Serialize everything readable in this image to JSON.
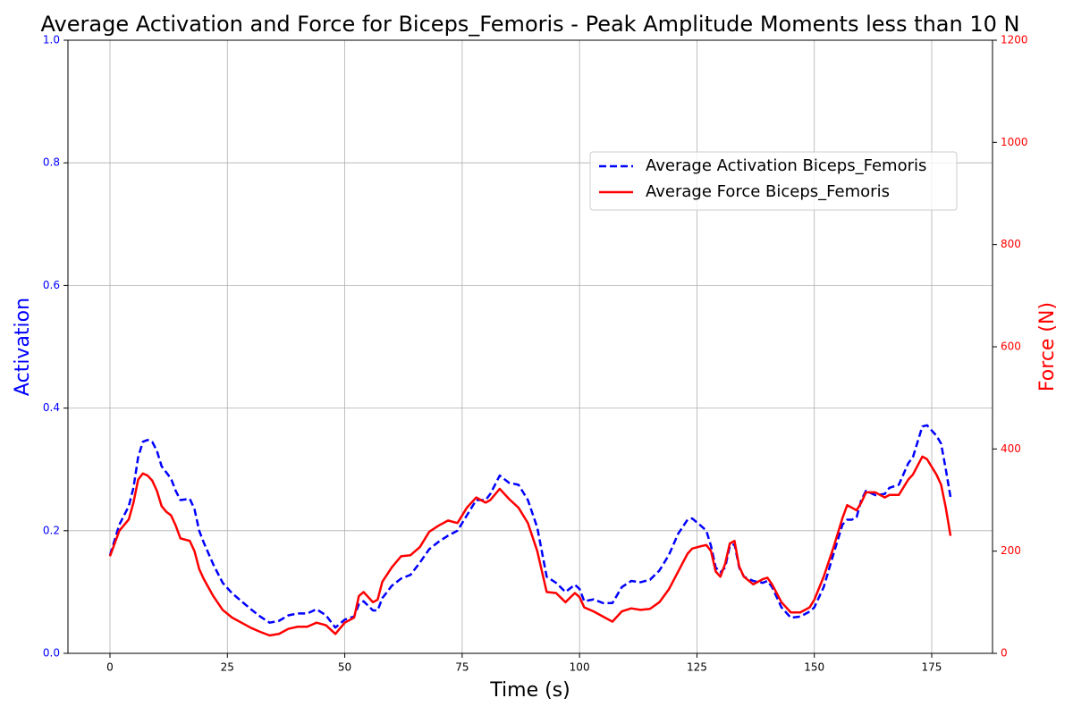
{
  "chart_data": {
    "type": "line",
    "title": "Average Activation and Force for Biceps_Femoris - Peak Amplitude Moments less than 10 N",
    "xlabel": "Time (s)",
    "ylabel": "Activation",
    "y2label": "Force (N)",
    "ylabel_color": "blue",
    "y2label_color": "red",
    "x": [
      0,
      2,
      4,
      5,
      6,
      7,
      8,
      9,
      10,
      11,
      12,
      13,
      14,
      15,
      17,
      18,
      19,
      20,
      22,
      24,
      26,
      28,
      30,
      32,
      34,
      36,
      38,
      40,
      42,
      44,
      46,
      48,
      50,
      52,
      53,
      54,
      56,
      57,
      58,
      60,
      62,
      64,
      66,
      68,
      70,
      72,
      74,
      76,
      78,
      80,
      81,
      83,
      85,
      87,
      89,
      91,
      93,
      95,
      97,
      99,
      100,
      101,
      103,
      105,
      107,
      109,
      111,
      113,
      115,
      117,
      119,
      121,
      123,
      124,
      126,
      127,
      128,
      129,
      130,
      131,
      132,
      133,
      134,
      135,
      137,
      139,
      140,
      141,
      143,
      145,
      147,
      149,
      150,
      152,
      154,
      156,
      157,
      158,
      159,
      160,
      161,
      163,
      165,
      166,
      168,
      170,
      171,
      173,
      174,
      176,
      177,
      178,
      179
    ],
    "series": [
      {
        "name": "Average Activation Biceps_Femoris",
        "color": "blue",
        "dash": true,
        "axis": "y",
        "values": [
          0.16,
          0.21,
          0.24,
          0.27,
          0.32,
          0.345,
          0.348,
          0.345,
          0.33,
          0.305,
          0.295,
          0.285,
          0.265,
          0.25,
          0.252,
          0.235,
          0.2,
          0.18,
          0.145,
          0.115,
          0.098,
          0.085,
          0.072,
          0.06,
          0.05,
          0.053,
          0.062,
          0.065,
          0.065,
          0.072,
          0.062,
          0.042,
          0.055,
          0.06,
          0.08,
          0.085,
          0.07,
          0.07,
          0.09,
          0.11,
          0.122,
          0.128,
          0.148,
          0.17,
          0.182,
          0.192,
          0.2,
          0.225,
          0.25,
          0.25,
          0.26,
          0.29,
          0.278,
          0.275,
          0.25,
          0.205,
          0.125,
          0.115,
          0.1,
          0.112,
          0.105,
          0.085,
          0.088,
          0.082,
          0.082,
          0.108,
          0.118,
          0.116,
          0.12,
          0.135,
          0.16,
          0.195,
          0.218,
          0.22,
          0.207,
          0.2,
          0.175,
          0.14,
          0.132,
          0.14,
          0.175,
          0.178,
          0.14,
          0.125,
          0.118,
          0.115,
          0.118,
          0.108,
          0.075,
          0.058,
          0.06,
          0.068,
          0.075,
          0.108,
          0.16,
          0.21,
          0.218,
          0.218,
          0.222,
          0.25,
          0.265,
          0.258,
          0.26,
          0.27,
          0.275,
          0.31,
          0.32,
          0.37,
          0.372,
          0.355,
          0.342,
          0.3,
          0.255
        ]
      },
      {
        "name": "Average Force Biceps_Femoris",
        "color": "red",
        "dash": false,
        "axis": "y2",
        "values": [
          190,
          240,
          262,
          295,
          340,
          352,
          348,
          338,
          318,
          288,
          277,
          270,
          250,
          225,
          220,
          200,
          165,
          145,
          112,
          85,
          70,
          60,
          50,
          42,
          35,
          38,
          48,
          52,
          52,
          60,
          55,
          38,
          60,
          70,
          112,
          120,
          100,
          105,
          140,
          168,
          190,
          192,
          208,
          238,
          250,
          260,
          255,
          285,
          305,
          295,
          300,
          322,
          302,
          285,
          255,
          200,
          120,
          118,
          100,
          118,
          110,
          90,
          82,
          72,
          62,
          82,
          88,
          85,
          87,
          100,
          125,
          160,
          195,
          205,
          210,
          212,
          200,
          160,
          150,
          175,
          215,
          220,
          170,
          150,
          135,
          145,
          148,
          135,
          100,
          80,
          80,
          90,
          105,
          150,
          205,
          265,
          290,
          285,
          280,
          295,
          315,
          315,
          305,
          310,
          310,
          340,
          350,
          385,
          380,
          350,
          330,
          285,
          230
        ]
      }
    ],
    "xlim": [
      -8.95,
      187.95
    ],
    "xticks": [
      0,
      25,
      50,
      75,
      100,
      125,
      150,
      175
    ],
    "ylim": [
      0,
      1
    ],
    "yticks": [
      {
        "value": 0,
        "label": "0.0"
      },
      0.2,
      0.4,
      0.6,
      0.8,
      {
        "value": 1,
        "label": "1.0"
      }
    ],
    "y2lim": [
      0,
      1200
    ],
    "y2ticks": [
      0,
      200,
      400,
      600,
      800,
      1000,
      1200
    ],
    "grid": true
  }
}
